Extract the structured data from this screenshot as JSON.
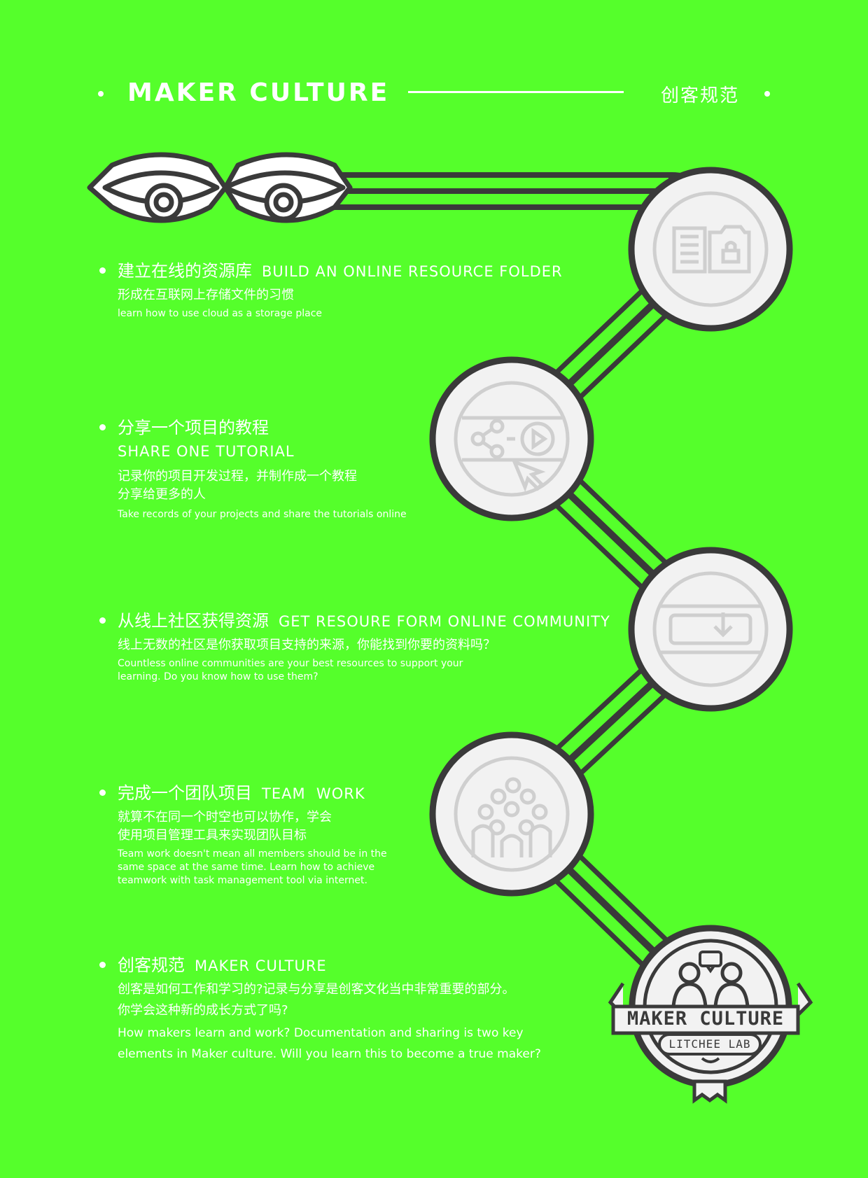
{
  "header": {
    "title_en": "MAKER CULTURE",
    "title_cn": "创客规范"
  },
  "sections": [
    {
      "title_cn": "建立在线的资源库",
      "title_en": "BUILD AN ONLINE RESOURCE FOLDER",
      "desc_cn": [
        "形成在互联网上存储文件的习惯"
      ],
      "desc_en": [
        "learn how to use cloud as a storage place"
      ]
    },
    {
      "title_cn": "分享一个项目的教程",
      "title_en": "SHARE ONE TUTORIAL",
      "desc_cn": [
        "记录你的项目开发过程，并制作成一个教程",
        "分享给更多的人"
      ],
      "desc_en": [
        "Take records of your projects and share the tutorials online"
      ]
    },
    {
      "title_cn": "从线上社区获得资源",
      "title_en": "GET RESOURE FORM ONLINE COMMUNITY",
      "desc_cn": [
        "线上无数的社区是你获取项目支持的来源，你能找到你要的资料吗？"
      ],
      "desc_en": [
        "Countless online communities are your best resources to support your",
        "learning. Do you know how to use them?"
      ]
    },
    {
      "title_cn": "完成一个团队项目",
      "title_en": "TEAM  WORK",
      "desc_cn": [
        "就算不在同一个时空也可以协作，学会",
        "使用项目管理工具来实现团队目标"
      ],
      "desc_en": [
        "Team work doesn't mean all members should be in the",
        "same space at the same time. Learn how to achieve",
        "teamwork with task management tool via internet."
      ]
    },
    {
      "title_cn": "创客规范",
      "title_en": "MAKER CULTURE",
      "desc_cn": [
        "创客是如何工作和学习的?记录与分享是创客文化当中非常重要的部分。",
        "你学会这种新的成长方式了吗?"
      ],
      "desc_en": [
        "How makers learn and work? Documentation and sharing is two key",
        "elements in Maker culture. Will you learn this to become a true maker?"
      ]
    }
  ],
  "badge": {
    "main": "MAKER CULTURE",
    "sub": "LITCHEE LAB"
  },
  "icons": [
    "eyes-icon",
    "folder-icon",
    "share-play-icon",
    "download-icon",
    "team-icon",
    "maker-culture-badge"
  ],
  "colors": {
    "background": "#55ff2b",
    "stroke": "#3a3a3a",
    "circle_fill": "#f2f2f2",
    "icon_stroke": "#cfcfcf",
    "text": "#ffffff"
  }
}
